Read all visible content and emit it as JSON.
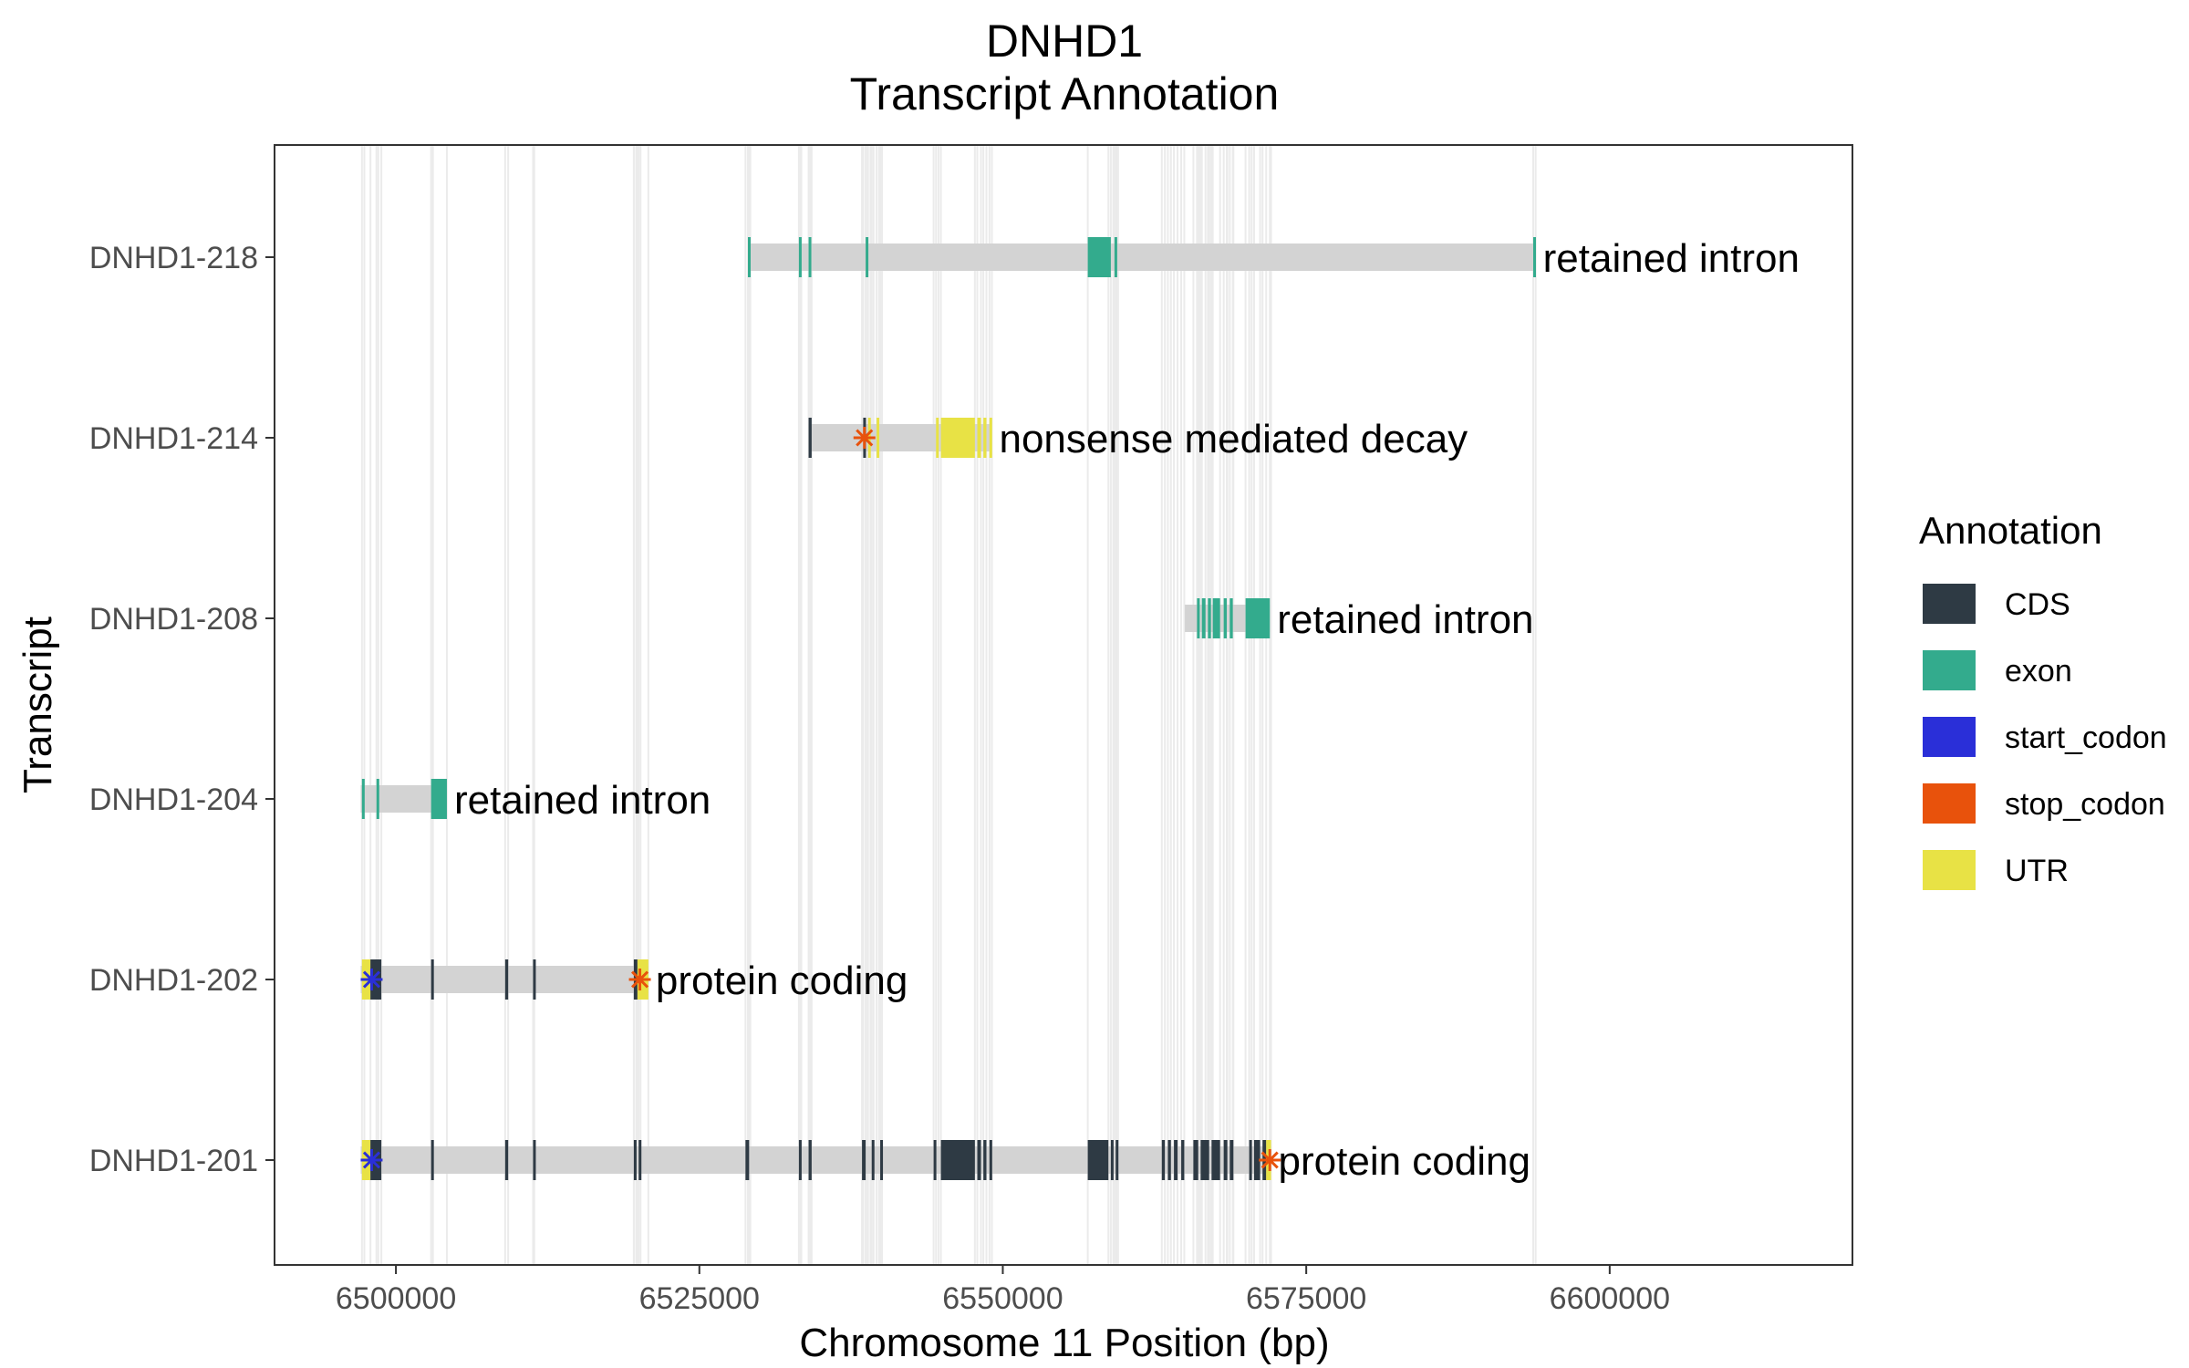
{
  "chart_data": {
    "type": "gene-track",
    "title_line1": "DNHD1",
    "title_line2": "Transcript Annotation",
    "xlabel": "Chromosome 11 Position (bp)",
    "ylabel": "Transcript",
    "xlim": [
      6490000,
      6620000
    ],
    "x_ticks": [
      6500000,
      6525000,
      6550000,
      6575000,
      6600000
    ],
    "x_tick_labels": [
      "6500000",
      "6525000",
      "6550000",
      "6575000",
      "6600000"
    ],
    "grid": "minor vertical lines at exon boundaries",
    "legend_position": "right",
    "legend": {
      "title": "Annotation",
      "items": [
        {
          "name": "CDS",
          "color": "#2e3a44"
        },
        {
          "name": "exon",
          "color": "#33ab8d"
        },
        {
          "name": "start_codon",
          "color": "#2a2fd8"
        },
        {
          "name": "stop_codon",
          "color": "#e8520c"
        },
        {
          "name": "UTR",
          "color": "#e8e245"
        }
      ]
    },
    "transcripts": [
      {
        "name": "DNHD1-201",
        "biotype_label": "protein coding",
        "start": 6497100,
        "end": 6572100,
        "features": [
          {
            "type": "UTR",
            "start": 6497200,
            "end": 6497900
          },
          {
            "type": "CDS",
            "start": 6497900,
            "end": 6498800
          },
          {
            "type": "CDS",
            "start": 6502900,
            "end": 6503050
          },
          {
            "type": "CDS",
            "start": 6509000,
            "end": 6509250
          },
          {
            "type": "CDS",
            "start": 6511300,
            "end": 6511400
          },
          {
            "type": "CDS",
            "start": 6519600,
            "end": 6519800
          },
          {
            "type": "CDS",
            "start": 6520000,
            "end": 6520150
          },
          {
            "type": "CDS",
            "start": 6528800,
            "end": 6529100
          },
          {
            "type": "CDS",
            "start": 6533200,
            "end": 6533400
          },
          {
            "type": "CDS",
            "start": 6534000,
            "end": 6534250
          },
          {
            "type": "CDS",
            "start": 6538400,
            "end": 6538700
          },
          {
            "type": "CDS",
            "start": 6539200,
            "end": 6539350
          },
          {
            "type": "CDS",
            "start": 6539900,
            "end": 6540050
          },
          {
            "type": "CDS",
            "start": 6544300,
            "end": 6544500
          },
          {
            "type": "CDS",
            "start": 6544900,
            "end": 6547700
          },
          {
            "type": "CDS",
            "start": 6547900,
            "end": 6548200
          },
          {
            "type": "CDS",
            "start": 6548400,
            "end": 6548650
          },
          {
            "type": "CDS",
            "start": 6548900,
            "end": 6549100
          },
          {
            "type": "CDS",
            "start": 6557000,
            "end": 6558700
          },
          {
            "type": "CDS",
            "start": 6558900,
            "end": 6559100
          },
          {
            "type": "CDS",
            "start": 6559300,
            "end": 6559500
          },
          {
            "type": "CDS",
            "start": 6563100,
            "end": 6563350
          },
          {
            "type": "CDS",
            "start": 6563600,
            "end": 6563850
          },
          {
            "type": "CDS",
            "start": 6564100,
            "end": 6564400
          },
          {
            "type": "CDS",
            "start": 6564700,
            "end": 6564950
          },
          {
            "type": "CDS",
            "start": 6565700,
            "end": 6566100
          },
          {
            "type": "CDS",
            "start": 6566300,
            "end": 6567000
          },
          {
            "type": "CDS",
            "start": 6567200,
            "end": 6567900
          },
          {
            "type": "CDS",
            "start": 6568200,
            "end": 6568500
          },
          {
            "type": "CDS",
            "start": 6568700,
            "end": 6569000
          },
          {
            "type": "CDS",
            "start": 6570300,
            "end": 6570500
          },
          {
            "type": "CDS",
            "start": 6570700,
            "end": 6571200
          },
          {
            "type": "CDS",
            "start": 6571400,
            "end": 6571700
          },
          {
            "type": "UTR",
            "start": 6571700,
            "end": 6572100
          }
        ],
        "start_codon": 6498000,
        "stop_codon": 6572000
      },
      {
        "name": "DNHD1-202",
        "biotype_label": "protein coding",
        "start": 6497100,
        "end": 6520800,
        "features": [
          {
            "type": "UTR",
            "start": 6497200,
            "end": 6497900
          },
          {
            "type": "CDS",
            "start": 6497900,
            "end": 6498800
          },
          {
            "type": "CDS",
            "start": 6502900,
            "end": 6503050
          },
          {
            "type": "CDS",
            "start": 6509000,
            "end": 6509250
          },
          {
            "type": "CDS",
            "start": 6511300,
            "end": 6511400
          },
          {
            "type": "CDS",
            "start": 6519600,
            "end": 6519900
          },
          {
            "type": "UTR",
            "start": 6519900,
            "end": 6520800
          }
        ],
        "start_codon": 6498000,
        "stop_codon": 6520100
      },
      {
        "name": "DNHD1-204",
        "biotype_label": "retained intron",
        "start": 6497100,
        "end": 6504200,
        "features": [
          {
            "type": "exon",
            "start": 6497200,
            "end": 6497400
          },
          {
            "type": "exon",
            "start": 6498400,
            "end": 6498550
          },
          {
            "type": "exon",
            "start": 6502900,
            "end": 6504200
          }
        ]
      },
      {
        "name": "DNHD1-208",
        "biotype_label": "retained intron",
        "start": 6565000,
        "end": 6572000,
        "features": [
          {
            "type": "exon",
            "start": 6566000,
            "end": 6566200
          },
          {
            "type": "exon",
            "start": 6566400,
            "end": 6566700
          },
          {
            "type": "exon",
            "start": 6566900,
            "end": 6567150
          },
          {
            "type": "exon",
            "start": 6567300,
            "end": 6567900
          },
          {
            "type": "exon",
            "start": 6568200,
            "end": 6568450
          },
          {
            "type": "exon",
            "start": 6568700,
            "end": 6568950
          },
          {
            "type": "exon",
            "start": 6570000,
            "end": 6572000
          }
        ]
      },
      {
        "name": "DNHD1-214",
        "biotype_label": "nonsense mediated decay",
        "start": 6534000,
        "end": 6549100,
        "features": [
          {
            "type": "CDS",
            "start": 6534000,
            "end": 6534250
          },
          {
            "type": "CDS",
            "start": 6538500,
            "end": 6538700
          },
          {
            "type": "UTR",
            "start": 6538900,
            "end": 6539100
          },
          {
            "type": "UTR",
            "start": 6539600,
            "end": 6539800
          },
          {
            "type": "UTR",
            "start": 6544500,
            "end": 6544700
          },
          {
            "type": "UTR",
            "start": 6544900,
            "end": 6547700
          },
          {
            "type": "UTR",
            "start": 6547900,
            "end": 6548200
          },
          {
            "type": "UTR",
            "start": 6548400,
            "end": 6548650
          },
          {
            "type": "UTR",
            "start": 6548900,
            "end": 6549100
          }
        ],
        "stop_codon": 6538600
      },
      {
        "name": "DNHD1-218",
        "biotype_label": "retained intron",
        "start": 6529000,
        "end": 6593900,
        "features": [
          {
            "type": "exon",
            "start": 6529000,
            "end": 6529200
          },
          {
            "type": "exon",
            "start": 6533200,
            "end": 6533350
          },
          {
            "type": "exon",
            "start": 6534000,
            "end": 6534150
          },
          {
            "type": "exon",
            "start": 6538700,
            "end": 6538850
          },
          {
            "type": "exon",
            "start": 6557000,
            "end": 6558900
          },
          {
            "type": "exon",
            "start": 6559200,
            "end": 6559400
          },
          {
            "type": "exon",
            "start": 6593700,
            "end": 6593900
          }
        ]
      }
    ]
  }
}
